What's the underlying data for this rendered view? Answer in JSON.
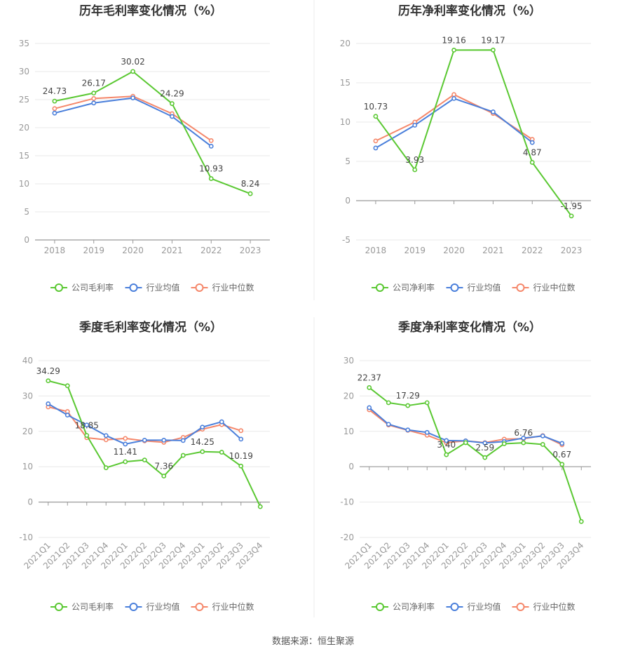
{
  "footer": "数据来源：恒生聚源",
  "colors": {
    "company": "#5ac832",
    "avg": "#4a7fdb",
    "median": "#f5876a",
    "grid": "#e8e8e8",
    "axis": "#999999",
    "divider": "#eeeeee"
  },
  "chart_data": [
    {
      "type": "line",
      "title": "历年毛利率变化情况（%）",
      "categories": [
        "2018",
        "2019",
        "2020",
        "2021",
        "2022",
        "2023"
      ],
      "ylim": [
        0,
        35
      ],
      "yticks": [
        0,
        5,
        10,
        15,
        20,
        25,
        30,
        35
      ],
      "series": [
        {
          "name": "公司毛利率",
          "role": "company",
          "values": [
            24.73,
            26.17,
            30.02,
            24.29,
            10.93,
            8.24
          ]
        },
        {
          "name": "行业均值",
          "role": "avg",
          "values": [
            22.6,
            24.4,
            25.3,
            22.0,
            16.7,
            null
          ]
        },
        {
          "name": "行业中位数",
          "role": "median",
          "values": [
            23.4,
            25.2,
            25.6,
            22.5,
            17.7,
            null
          ]
        }
      ],
      "labels": [
        {
          "index": 0,
          "text": "24.73"
        },
        {
          "index": 1,
          "text": "26.17"
        },
        {
          "index": 2,
          "text": "30.02"
        },
        {
          "index": 3,
          "text": "24.29"
        },
        {
          "index": 4,
          "text": "10.93"
        },
        {
          "index": 5,
          "text": "8.24"
        }
      ],
      "legend": [
        "公司毛利率",
        "行业均值",
        "行业中位数"
      ]
    },
    {
      "type": "line",
      "title": "历年净利率变化情况（%）",
      "categories": [
        "2018",
        "2019",
        "2020",
        "2021",
        "2022",
        "2023"
      ],
      "ylim": [
        -5,
        20
      ],
      "yticks": [
        -5,
        0,
        5,
        10,
        15,
        20
      ],
      "series": [
        {
          "name": "公司净利率",
          "role": "company",
          "values": [
            10.73,
            3.93,
            19.16,
            19.17,
            4.87,
            -1.95
          ]
        },
        {
          "name": "行业均值",
          "role": "avg",
          "values": [
            6.7,
            9.6,
            13.0,
            11.3,
            7.4,
            null
          ]
        },
        {
          "name": "行业中位数",
          "role": "median",
          "values": [
            7.6,
            10.0,
            13.5,
            11.1,
            7.8,
            null
          ]
        }
      ],
      "labels": [
        {
          "index": 0,
          "text": "10.73"
        },
        {
          "index": 1,
          "text": "3.93"
        },
        {
          "index": 2,
          "text": "19.16"
        },
        {
          "index": 3,
          "text": "19.17"
        },
        {
          "index": 4,
          "text": "4.87"
        },
        {
          "index": 5,
          "text": "-1.95"
        }
      ],
      "legend": [
        "公司净利率",
        "行业均值",
        "行业中位数"
      ]
    },
    {
      "type": "line",
      "title": "季度毛利率变化情况（%）",
      "categories": [
        "2021Q1",
        "2021Q2",
        "2021Q3",
        "2021Q4",
        "2022Q1",
        "2022Q2",
        "2022Q3",
        "2022Q4",
        "2023Q1",
        "2023Q2",
        "2023Q3",
        "2023Q4"
      ],
      "ylim": [
        -10,
        40
      ],
      "yticks": [
        -10,
        0,
        10,
        20,
        30,
        40
      ],
      "series": [
        {
          "name": "公司毛利率",
          "role": "company",
          "values": [
            34.29,
            32.9,
            18.85,
            9.7,
            11.41,
            11.9,
            7.36,
            13.2,
            14.25,
            14.1,
            10.19,
            -1.3
          ]
        },
        {
          "name": "行业均值",
          "role": "avg",
          "values": [
            27.8,
            24.6,
            21.8,
            18.8,
            16.4,
            17.5,
            17.5,
            17.4,
            21.2,
            22.7,
            17.8,
            null
          ]
        },
        {
          "name": "行业中位数",
          "role": "median",
          "values": [
            26.9,
            25.6,
            18.2,
            17.6,
            18.0,
            17.3,
            16.9,
            18.3,
            20.6,
            21.9,
            20.2,
            null
          ]
        }
      ],
      "labels": [
        {
          "index": 0,
          "text": "34.29"
        },
        {
          "index": 2,
          "text": "18.85"
        },
        {
          "index": 4,
          "text": "11.41"
        },
        {
          "index": 6,
          "text": "7.36"
        },
        {
          "index": 8,
          "text": "14.25"
        },
        {
          "index": 10,
          "text": "10.19"
        }
      ],
      "legend": [
        "公司毛利率",
        "行业均值",
        "行业中位数"
      ]
    },
    {
      "type": "line",
      "title": "季度净利率变化情况（%）",
      "categories": [
        "2021Q1",
        "2021Q2",
        "2021Q3",
        "2021Q4",
        "2022Q1",
        "2022Q2",
        "2022Q3",
        "2022Q4",
        "2023Q1",
        "2023Q2",
        "2023Q3",
        "2023Q4"
      ],
      "ylim": [
        -20,
        30
      ],
      "yticks": [
        -20,
        -10,
        0,
        10,
        20,
        30
      ],
      "series": [
        {
          "name": "公司净利率",
          "role": "company",
          "values": [
            22.37,
            18.1,
            17.29,
            18.1,
            3.4,
            6.8,
            2.59,
            6.5,
            6.76,
            6.3,
            0.67,
            -15.5
          ]
        },
        {
          "name": "行业均值",
          "role": "avg",
          "values": [
            16.7,
            12.0,
            10.4,
            9.7,
            7.4,
            7.3,
            6.7,
            7.1,
            8.1,
            8.7,
            6.6,
            null
          ]
        },
        {
          "name": "行业中位数",
          "role": "median",
          "values": [
            16.1,
            11.8,
            10.3,
            8.9,
            6.8,
            7.3,
            6.8,
            7.8,
            7.9,
            8.8,
            6.2,
            null
          ]
        }
      ],
      "labels": [
        {
          "index": 0,
          "text": "22.37"
        },
        {
          "index": 2,
          "text": "17.29"
        },
        {
          "index": 4,
          "text": "3.40"
        },
        {
          "index": 6,
          "text": "2.59"
        },
        {
          "index": 8,
          "text": "6.76"
        },
        {
          "index": 10,
          "text": "0.67"
        }
      ],
      "legend": [
        "公司净利率",
        "行业均值",
        "行业中位数"
      ]
    }
  ]
}
